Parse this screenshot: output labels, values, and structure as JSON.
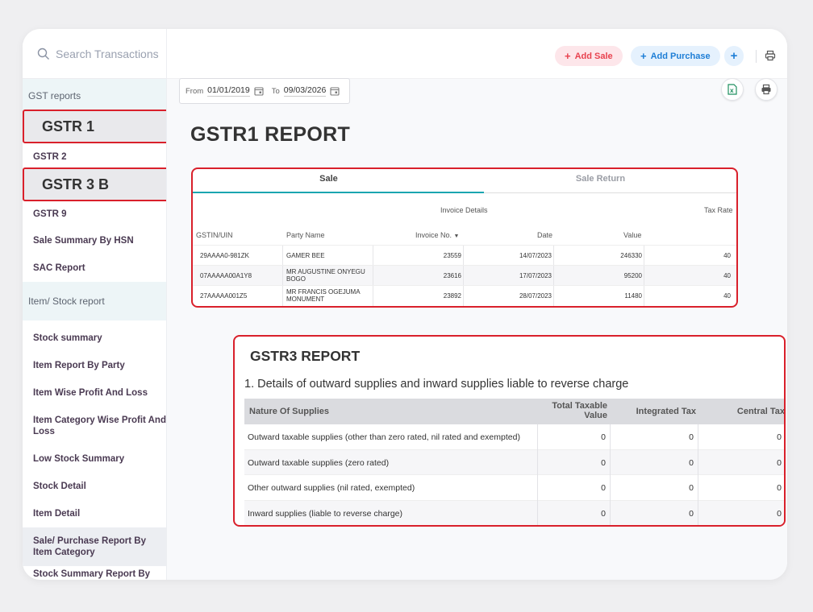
{
  "sidebar": {
    "search_placeholder": "Search Transactions",
    "sections": {
      "gst_reports": "GST reports",
      "item_stock_report": "Item/ Stock report"
    },
    "gst_items": [
      "GSTR 1",
      "GSTR 2",
      "GSTR 3 B",
      "GSTR 9",
      "Sale Summary By HSN",
      "SAC Report"
    ],
    "stock_items": [
      "Stock summary",
      "Item Report By Party",
      "Item Wise Profit And Loss",
      "Item Category Wise Profit And Loss",
      "Low Stock Summary",
      "Stock Detail",
      "Item Detail",
      "Sale/ Purchase Report By Item Category",
      "Stock Summary Report By Item"
    ]
  },
  "topbar": {
    "add_sale": "Add Sale",
    "add_purchase": "Add Purchase",
    "plus": "+"
  },
  "filter": {
    "from_label": "From",
    "from_date": "01/01/2019",
    "to_label": "To",
    "to_date": "09/03/2026"
  },
  "gstr1": {
    "title": "GSTR1 REPORT",
    "tabs": [
      "Sale",
      "Sale Return"
    ],
    "group_headers": {
      "invoice_details": "Invoice Details",
      "tax_rate": "Tax Rate"
    },
    "columns": {
      "gstin": "GSTIN/UIN",
      "party": "Party Name",
      "invoice_no": "Invoice No.",
      "date": "Date",
      "value": "Value"
    },
    "rows": [
      {
        "gstin": "29AAAA0-981ZK",
        "party": "GAMER BEE",
        "invoice_no": "23559",
        "date": "14/07/2023",
        "value": "246330",
        "rate": "40"
      },
      {
        "gstin": "07AAAAA00A1Y8",
        "party": "MR AUGUSTINE ONYEGU BOGO",
        "invoice_no": "23616",
        "date": "17/07/2023",
        "value": "95200",
        "rate": "40"
      },
      {
        "gstin": "27AAAAA001Z5",
        "party": "MR FRANCIS OGEJUMA MONUMENT",
        "invoice_no": "23892",
        "date": "28/07/2023",
        "value": "11480",
        "rate": "40"
      }
    ]
  },
  "gstr3": {
    "title": "GSTR3 REPORT",
    "subtitle": "1. Details of outward supplies and inward supplies liable to reverse charge",
    "columns": {
      "nature": "Nature Of Supplies",
      "taxable": "Total Taxable Value",
      "integrated": "Integrated Tax",
      "central": "Central Tax"
    },
    "rows": [
      {
        "nature": "Outward taxable supplies (other than zero rated, nil rated and exempted)",
        "taxable": "0",
        "integrated": "0",
        "central": "0"
      },
      {
        "nature": "Outward taxable supplies (zero rated)",
        "taxable": "0",
        "integrated": "0",
        "central": "0"
      },
      {
        "nature": "Other outward supplies (nil rated, exempted)",
        "taxable": "0",
        "integrated": "0",
        "central": "0"
      },
      {
        "nature": "Inward supplies (liable to reverse charge)",
        "taxable": "0",
        "integrated": "0",
        "central": "0"
      }
    ]
  }
}
